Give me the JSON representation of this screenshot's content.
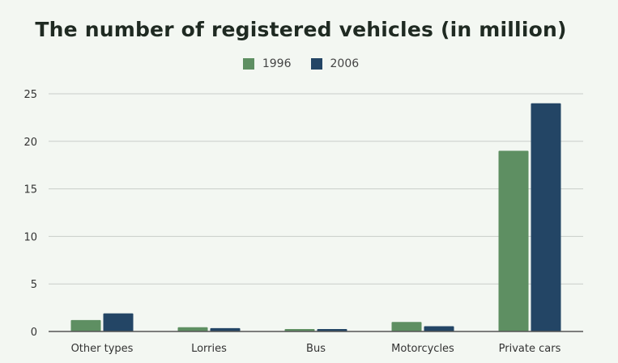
{
  "chart_data": {
    "type": "bar",
    "title": "The number of registered vehicles (in million)",
    "categories": [
      "Other types",
      "Lorries",
      "Bus",
      "Motorcycles",
      "Private cars"
    ],
    "series": [
      {
        "name": "1996",
        "color": "#5e8f62",
        "values": [
          1.2,
          0.45,
          0.25,
          1.0,
          19
        ]
      },
      {
        "name": "2006",
        "color": "#234565",
        "values": [
          1.9,
          0.35,
          0.25,
          0.55,
          24
        ]
      }
    ],
    "yticks": [
      0,
      5,
      10,
      15,
      20,
      25
    ],
    "ylim": [
      0,
      25
    ],
    "grid": true,
    "legend_position": "top"
  }
}
